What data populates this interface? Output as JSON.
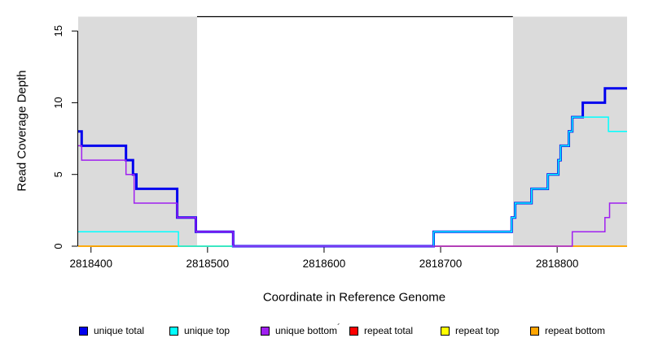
{
  "chart_data": {
    "type": "line",
    "subtype": "step-after",
    "title": "",
    "xlabel": "Coordinate in Reference Genome",
    "ylabel": "Read Coverage Depth",
    "x_range": [
      2818389,
      2818860
    ],
    "ylim": [
      0,
      16.2
    ],
    "grid": false,
    "legend_position": "bottom",
    "x_ticks": {
      "values": [
        2818400,
        2818500,
        2818600,
        2818700,
        2818800
      ],
      "labels": [
        "2818400",
        "2818500",
        "2818600",
        "2818700",
        "2818800"
      ]
    },
    "y_ticks": {
      "values": [
        0,
        5,
        10,
        15
      ],
      "labels": [
        "0",
        "5",
        "10",
        "15"
      ]
    },
    "shaded_regions": [
      {
        "x_start": 2818389,
        "x_end": 2818491,
        "color": "#DBDBDB"
      },
      {
        "x_start": 2818762,
        "x_end": 2818860,
        "color": "#DBDBDB"
      }
    ],
    "marker_line": {
      "y": 16,
      "x_start": 2818491,
      "x_end": 2818762,
      "color": "#000000"
    },
    "series": [
      {
        "name": "repeat total",
        "color": "#FF0000",
        "width": 1.5,
        "points": [
          [
            2818389,
            0
          ]
        ]
      },
      {
        "name": "repeat top",
        "color": "#FFFF00",
        "width": 1.5,
        "points": [
          [
            2818389,
            0
          ]
        ]
      },
      {
        "name": "repeat bottom",
        "color": "#FFA500",
        "width": 1.5,
        "points": [
          [
            2818389,
            0
          ]
        ]
      },
      {
        "name": "unique total",
        "color": "#0000EE",
        "width": 3,
        "points": [
          [
            2818389,
            8
          ],
          [
            2818392,
            7
          ],
          [
            2818430,
            6
          ],
          [
            2818436,
            5
          ],
          [
            2818439,
            4
          ],
          [
            2818474,
            2
          ],
          [
            2818490,
            1
          ],
          [
            2818522,
            0
          ],
          [
            2818694,
            1
          ],
          [
            2818761,
            2
          ],
          [
            2818764,
            3
          ],
          [
            2818778,
            4
          ],
          [
            2818792,
            5
          ],
          [
            2818801,
            6
          ],
          [
            2818803,
            7
          ],
          [
            2818810,
            8
          ],
          [
            2818813,
            9
          ],
          [
            2818822,
            10
          ],
          [
            2818841,
            11
          ]
        ]
      },
      {
        "name": "unique top",
        "color": "#00FFFF",
        "width": 1.5,
        "points": [
          [
            2818389,
            1
          ],
          [
            2818475,
            0
          ],
          [
            2818694,
            1
          ],
          [
            2818761,
            2
          ],
          [
            2818764,
            3
          ],
          [
            2818778,
            4
          ],
          [
            2818792,
            5
          ],
          [
            2818801,
            6
          ],
          [
            2818803,
            7
          ],
          [
            2818810,
            8
          ],
          [
            2818813,
            9
          ],
          [
            2818844,
            8
          ]
        ]
      },
      {
        "name": "unique bottom",
        "color": "#A020F0",
        "width": 1.5,
        "points": [
          [
            2818389,
            7
          ],
          [
            2818392,
            6
          ],
          [
            2818430,
            5
          ],
          [
            2818437,
            3
          ],
          [
            2818474,
            2
          ],
          [
            2818490,
            1
          ],
          [
            2818522,
            0
          ],
          [
            2818813,
            1
          ],
          [
            2818841,
            2
          ],
          [
            2818845,
            3
          ]
        ]
      }
    ]
  },
  "legend": {
    "stray_mark": "´",
    "items": [
      {
        "label": "unique total",
        "color": "#0000EE"
      },
      {
        "label": "unique top",
        "color": "#00FFFF"
      },
      {
        "label": "unique bottom",
        "color": "#A020F0"
      },
      {
        "label": "repeat total",
        "color": "#FF0000"
      },
      {
        "label": "repeat top",
        "color": "#FFFF00"
      },
      {
        "label": "repeat bottom",
        "color": "#FFA500"
      }
    ]
  },
  "colors": {
    "background": "#FFFFFF",
    "shading": "#DBDBDB",
    "axis": "#000000"
  }
}
